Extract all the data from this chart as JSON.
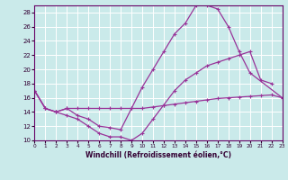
{
  "xlabel": "Windchill (Refroidissement éolien,°C)",
  "background_color": "#caeaea",
  "line_color": "#993399",
  "grid_color": "#ffffff",
  "xlim": [
    0,
    23
  ],
  "ylim": [
    10,
    29
  ],
  "yticks": [
    10,
    12,
    14,
    16,
    18,
    20,
    22,
    24,
    26,
    28
  ],
  "xticks": [
    0,
    1,
    2,
    3,
    4,
    5,
    6,
    7,
    8,
    9,
    10,
    11,
    12,
    13,
    14,
    15,
    16,
    17,
    18,
    19,
    20,
    21,
    22,
    23
  ],
  "curve1_x": [
    0,
    1,
    2,
    3,
    4,
    5,
    6,
    7,
    8,
    9,
    10,
    11,
    12,
    13,
    14,
    15,
    16,
    17,
    18,
    19,
    20,
    21,
    22,
    23
  ],
  "curve1_y": [
    17,
    14.5,
    14,
    14.5,
    14.5,
    14.5,
    14.5,
    14.5,
    14.5,
    14.5,
    14.5,
    14.7,
    14.9,
    15.1,
    15.3,
    15.5,
    15.7,
    15.9,
    16.0,
    16.1,
    16.2,
    16.3,
    16.4,
    16.0
  ],
  "curve2_x": [
    0,
    1,
    2,
    3,
    4,
    5,
    6,
    7,
    8,
    9,
    10,
    11,
    12,
    13,
    14,
    15,
    16,
    17,
    18,
    19,
    20,
    21,
    22
  ],
  "curve2_y": [
    17,
    14.5,
    14,
    13.5,
    13,
    12,
    11,
    10.5,
    10.5,
    10,
    11,
    13,
    15,
    17,
    18.5,
    19.5,
    20.5,
    21,
    21.5,
    22,
    22.5,
    18.5,
    18
  ],
  "curve3_x": [
    0,
    1,
    2,
    3,
    4,
    5,
    6,
    7,
    8,
    9,
    10,
    11,
    12,
    13,
    14,
    15,
    16,
    17,
    18,
    19,
    20,
    23
  ],
  "curve3_y": [
    17,
    14.5,
    14,
    14.5,
    13.5,
    13,
    12,
    11.8,
    11.5,
    14.5,
    17.5,
    20,
    22.5,
    25,
    26.5,
    29,
    29,
    28.5,
    26,
    22.5,
    19.5,
    16
  ],
  "marker_size": 2.0,
  "line_width": 0.9
}
